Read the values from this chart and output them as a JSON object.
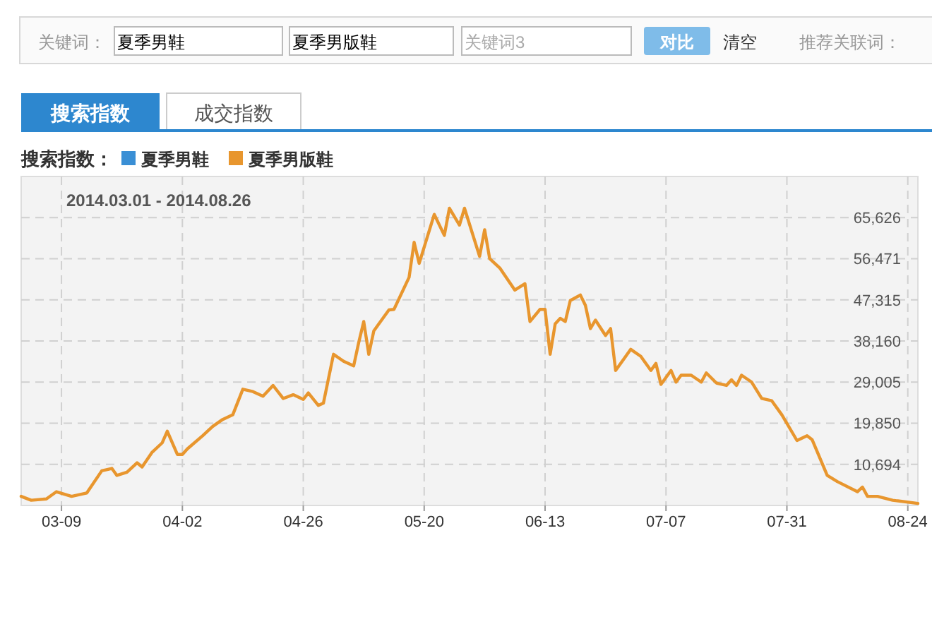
{
  "chart_data": {
    "type": "line",
    "legend_title": "搜索指数：",
    "legend": "top left",
    "grid": true,
    "annotations": [
      "2014.03.01 - 2014.08.26",
      "关键词：",
      "夏季男鞋",
      "夏季男版鞋",
      "关键词3",
      "对比",
      "清空",
      "推荐关联词：",
      "搜索指数",
      "成交指数"
    ],
    "xlim": [
      "2014-03-01",
      "2014-08-26"
    ],
    "xticks": [
      {
        "value": "2014-03-09",
        "label": "03-09"
      },
      {
        "value": "2014-04-02",
        "label": "04-02"
      },
      {
        "value": "2014-04-26",
        "label": "04-26"
      },
      {
        "value": "2014-05-20",
        "label": "05-20"
      },
      {
        "value": "2014-06-13",
        "label": "06-13"
      },
      {
        "value": "2014-07-07",
        "label": "07-07"
      },
      {
        "value": "2014-07-31",
        "label": "07-31"
      },
      {
        "value": "2014-08-24",
        "label": "08-24"
      }
    ],
    "ylim": [
      1539,
      74781
    ],
    "yticks": [
      {
        "value": 10694,
        "label": "10,694"
      },
      {
        "value": 19850,
        "label": "19,850"
      },
      {
        "value": 29005,
        "label": "29,005"
      },
      {
        "value": 38160,
        "label": "38,160"
      },
      {
        "value": 47315,
        "label": "47,315"
      },
      {
        "value": 56471,
        "label": "56,471"
      },
      {
        "value": 65626,
        "label": "65,626"
      }
    ],
    "series": [
      {
        "name": "夏季男鞋",
        "color": "#3a8fd5"
      },
      {
        "name": "夏季男版鞋",
        "color": "#e8962e",
        "x": [
          "2014-03-01",
          "2014-03-03",
          "2014-03-06",
          "2014-03-08",
          "2014-03-11",
          "2014-03-14",
          "2014-03-17",
          "2014-03-19",
          "2014-03-20",
          "2014-03-22",
          "2014-03-24",
          "2014-03-25",
          "2014-03-27",
          "2014-03-29",
          "2014-03-30",
          "2014-04-01",
          "2014-04-02",
          "2014-04-03",
          "2014-04-06",
          "2014-04-08",
          "2014-04-10",
          "2014-04-12",
          "2014-04-14",
          "2014-04-16",
          "2014-04-18",
          "2014-04-20",
          "2014-04-22",
          "2014-04-24",
          "2014-04-26",
          "2014-04-27",
          "2014-04-29",
          "2014-04-30",
          "2014-05-02",
          "2014-05-04",
          "2014-05-06",
          "2014-05-07",
          "2014-05-08",
          "2014-05-09",
          "2014-05-10",
          "2014-05-11",
          "2014-05-13",
          "2014-05-14",
          "2014-05-17",
          "2014-05-18",
          "2014-05-19",
          "2014-05-22",
          "2014-05-24",
          "2014-05-25",
          "2014-05-27",
          "2014-05-28",
          "2014-05-31",
          "2014-06-01",
          "2014-06-02",
          "2014-06-04",
          "2014-06-07",
          "2014-06-09",
          "2014-06-10",
          "2014-06-12",
          "2014-06-13",
          "2014-06-14",
          "2014-06-15",
          "2014-06-16",
          "2014-06-17",
          "2014-06-18",
          "2014-06-20",
          "2014-06-21",
          "2014-06-22",
          "2014-06-23",
          "2014-06-25",
          "2014-06-26",
          "2014-06-27",
          "2014-06-30",
          "2014-07-02",
          "2014-07-04",
          "2014-07-05",
          "2014-07-06",
          "2014-07-08",
          "2014-07-09",
          "2014-07-10",
          "2014-07-12",
          "2014-07-14",
          "2014-07-15",
          "2014-07-17",
          "2014-07-19",
          "2014-07-20",
          "2014-07-21",
          "2014-07-22",
          "2014-07-24",
          "2014-07-26",
          "2014-07-28",
          "2014-07-30",
          "2014-08-02",
          "2014-08-04",
          "2014-08-05",
          "2014-08-08",
          "2014-08-10",
          "2014-08-14",
          "2014-08-15",
          "2014-08-16",
          "2014-08-18",
          "2014-08-21",
          "2014-08-26"
        ],
        "values": [
          3560,
          2700,
          3000,
          4590,
          3560,
          4300,
          9260,
          9780,
          8230,
          8950,
          11040,
          10100,
          13400,
          15490,
          18080,
          12900,
          12900,
          14150,
          17050,
          19130,
          20690,
          21720,
          27420,
          26900,
          25860,
          28260,
          25360,
          26200,
          25150,
          26600,
          23800,
          24330,
          35200,
          33650,
          32620,
          37800,
          42490,
          35200,
          40400,
          41960,
          45070,
          45200,
          52330,
          60120,
          55440,
          66340,
          61670,
          67710,
          63970,
          67710,
          57000,
          62920,
          56500,
          54410,
          49490,
          50900,
          42490,
          45200,
          45200,
          35200,
          41960,
          43200,
          42490,
          47160,
          48400,
          46100,
          40920,
          42800,
          39370,
          40920,
          31590,
          36300,
          34730,
          31590,
          33150,
          28480,
          31590,
          29000,
          30530,
          30530,
          29000,
          31060,
          28800,
          28260,
          29520,
          28260,
          30530,
          29000,
          25360,
          24850,
          21720,
          16000,
          17050,
          16200,
          8230,
          6860,
          4590,
          5630,
          3560,
          3560,
          2700,
          1990
        ]
      }
    ]
  }
}
